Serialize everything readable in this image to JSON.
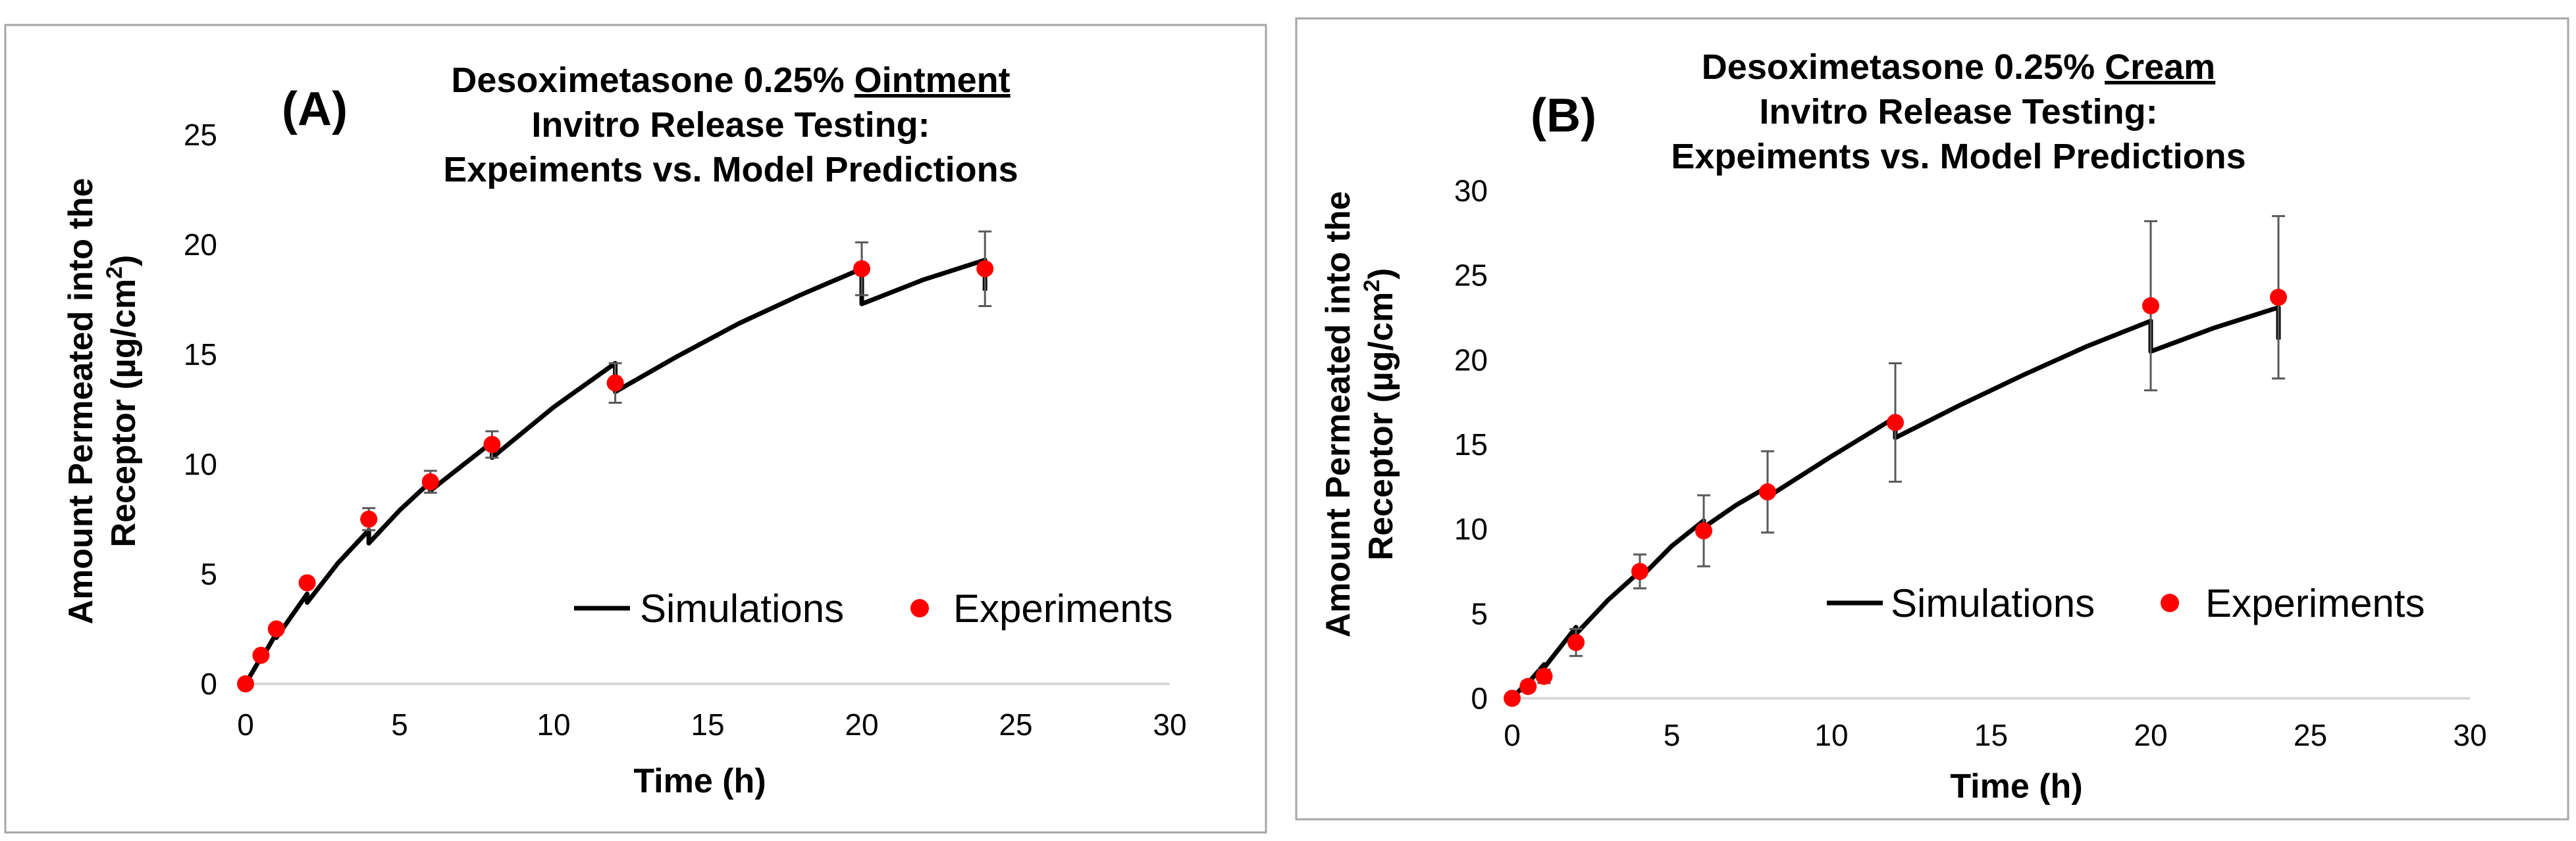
{
  "chart_data": [
    {
      "type": "line",
      "panel_label": "(A)",
      "title_prefix": "Desoximetasone 0.25% ",
      "title_emphasis": "Ointment",
      "title_line2": "Invitro Release Testing:",
      "title_line3": "Expeiments vs. Model Predictions",
      "xlabel": "Time (h)",
      "ylabel_line1": "Amount Permeated into the",
      "ylabel_line2": "Receptor (µg/cm",
      "ylabel_sup": "2",
      "ylabel_close": ")",
      "xlim": [
        0,
        30
      ],
      "ylim": [
        0,
        25
      ],
      "xticks": [
        0,
        5,
        10,
        15,
        20,
        25,
        30
      ],
      "yticks": [
        0,
        5,
        10,
        15,
        20,
        25
      ],
      "legend": {
        "simulations": "Simulations",
        "experiments": "Experiments",
        "position": "bottom-right"
      },
      "series": [
        {
          "name": "Simulations",
          "segments": [
            [
              [
                0,
                0
              ],
              [
                0.5,
                1.2
              ]
            ],
            [
              [
                0.5,
                1.1
              ],
              [
                1.0,
                2.3
              ]
            ],
            [
              [
                1.0,
                2.1
              ],
              [
                2.0,
                4.1
              ]
            ],
            [
              [
                2.0,
                3.7
              ],
              [
                3.0,
                5.5
              ],
              [
                4.0,
                7.0
              ]
            ],
            [
              [
                4.0,
                6.4
              ],
              [
                5.0,
                7.9
              ],
              [
                6.0,
                9.2
              ]
            ],
            [
              [
                6.0,
                8.8
              ],
              [
                7.0,
                9.9
              ],
              [
                8.0,
                11.0
              ]
            ],
            [
              [
                8.0,
                10.3
              ],
              [
                10.0,
                12.6
              ],
              [
                12.0,
                14.6
              ]
            ],
            [
              [
                12.0,
                13.3
              ],
              [
                14.0,
                14.9
              ],
              [
                16.0,
                16.4
              ],
              [
                18.0,
                17.7
              ],
              [
                20.0,
                18.9
              ]
            ],
            [
              [
                20.0,
                17.3
              ],
              [
                22.0,
                18.4
              ],
              [
                24.0,
                19.3
              ]
            ],
            [
              [
                24.0,
                19.3
              ],
              [
                24.0,
                17.9
              ]
            ]
          ]
        },
        {
          "name": "Experiments",
          "x": [
            0,
            0.5,
            1,
            2,
            4,
            6,
            8,
            12,
            20,
            24
          ],
          "y": [
            0,
            1.3,
            2.5,
            4.6,
            7.5,
            9.2,
            10.9,
            13.7,
            18.9,
            18.9
          ],
          "err": [
            0,
            0,
            0,
            0,
            0.5,
            0.5,
            0.6,
            0.9,
            1.2,
            1.7
          ]
        }
      ]
    },
    {
      "type": "line",
      "panel_label": "(B)",
      "title_prefix": "Desoximetasone 0.25% ",
      "title_emphasis": "Cream",
      "title_line2": "Invitro Release Testing:",
      "title_line3": "Expeiments vs. Model Predictions",
      "xlabel": "Time (h)",
      "ylabel_line1": "Amount Permeated into the",
      "ylabel_line2": "Receptor (µg/cm",
      "ylabel_sup": "2",
      "ylabel_close": ")",
      "xlim": [
        0,
        30
      ],
      "ylim": [
        0,
        30
      ],
      "xticks": [
        0,
        5,
        10,
        15,
        20,
        25,
        30
      ],
      "yticks": [
        0,
        5,
        10,
        15,
        20,
        25,
        30
      ],
      "legend": {
        "simulations": "Simulations",
        "experiments": "Experiments",
        "position": "bottom-right"
      },
      "series": [
        {
          "name": "Simulations",
          "segments": [
            [
              [
                0,
                0
              ],
              [
                0.5,
                1.0
              ]
            ],
            [
              [
                0.5,
                0.9
              ],
              [
                1.0,
                2.0
              ]
            ],
            [
              [
                1.0,
                1.8
              ],
              [
                2.0,
                4.2
              ]
            ],
            [
              [
                2.0,
                3.8
              ],
              [
                3.0,
                5.8
              ],
              [
                4.0,
                7.5
              ]
            ],
            [
              [
                4.0,
                7.1
              ],
              [
                5.0,
                9.0
              ],
              [
                6.0,
                10.5
              ]
            ],
            [
              [
                6.0,
                10.1
              ],
              [
                7.0,
                11.4
              ],
              [
                8.0,
                12.5
              ]
            ],
            [
              [
                8.0,
                11.9
              ],
              [
                10.0,
                14.3
              ],
              [
                12.0,
                16.6
              ]
            ],
            [
              [
                12.0,
                15.4
              ],
              [
                14.0,
                17.3
              ],
              [
                16.0,
                19.1
              ],
              [
                18.0,
                20.8
              ],
              [
                20.0,
                22.3
              ]
            ],
            [
              [
                20.0,
                20.5
              ],
              [
                22.0,
                21.9
              ],
              [
                24.0,
                23.1
              ]
            ],
            [
              [
                24.0,
                23.1
              ],
              [
                24.0,
                21.2
              ]
            ]
          ]
        },
        {
          "name": "Experiments",
          "x": [
            0,
            0.5,
            1,
            2,
            4,
            6,
            8,
            12,
            20,
            24
          ],
          "y": [
            0,
            0.7,
            1.3,
            3.3,
            7.5,
            9.9,
            12.2,
            16.3,
            23.2,
            23.7
          ],
          "err": [
            0,
            0.3,
            0.4,
            0.8,
            1.0,
            2.1,
            2.4,
            3.5,
            5.0,
            4.8
          ]
        }
      ]
    }
  ]
}
